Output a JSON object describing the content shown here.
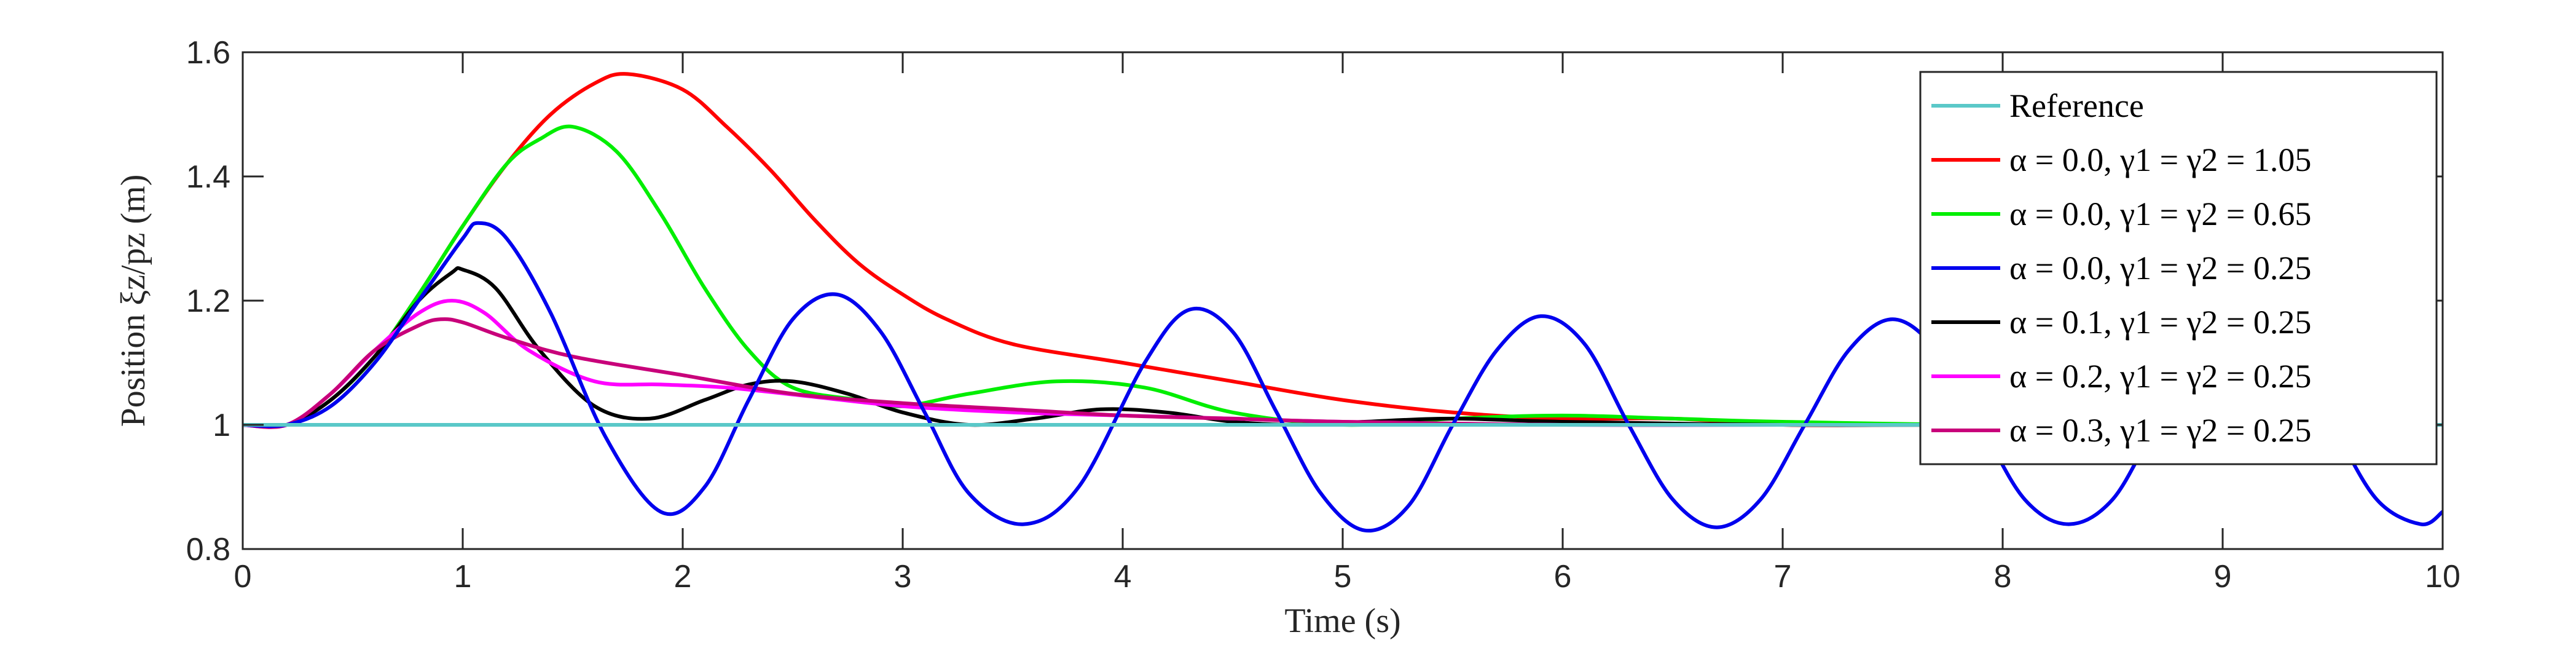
{
  "chart_data": {
    "type": "line",
    "xlabel": "Time (s)",
    "ylabel": "Position ξz/pz (m)",
    "xlim": [
      0,
      10
    ],
    "ylim": [
      0.8,
      1.6
    ],
    "xticks": [
      "0",
      "1",
      "2",
      "3",
      "4",
      "5",
      "6",
      "7",
      "8",
      "9",
      "10"
    ],
    "yticks": [
      "0.8",
      "1",
      "1.2",
      "1.4",
      "1.6"
    ],
    "grid": false,
    "legend_position": "top-right",
    "series": [
      {
        "name": "Reference",
        "color": "#5ac8c8",
        "x": [
          0,
          10
        ],
        "y": [
          1.0,
          1.0
        ]
      },
      {
        "name": "α = 0.0, γ1 = γ2 = 1.05",
        "color": "#ff0000",
        "x": [
          0,
          0.2,
          0.4,
          0.6,
          0.8,
          1.0,
          1.2,
          1.4,
          1.6,
          1.75,
          2.0,
          2.2,
          2.4,
          2.6,
          2.8,
          3.0,
          3.2,
          3.5,
          4.0,
          4.5,
          5.0,
          5.5,
          6.0,
          6.5,
          7.0,
          7.5,
          8.0,
          9.0,
          10.0
        ],
        "y": [
          1.0,
          1.0,
          1.04,
          1.11,
          1.21,
          1.32,
          1.42,
          1.5,
          1.55,
          1.565,
          1.54,
          1.48,
          1.41,
          1.33,
          1.26,
          1.21,
          1.17,
          1.13,
          1.1,
          1.07,
          1.04,
          1.02,
          1.01,
          1.01,
          1.0,
          1.0,
          1.0,
          1.0,
          1.0
        ]
      },
      {
        "name": "α = 0.0, γ1 = γ2 = 0.65",
        "color": "#00ee00",
        "x": [
          0,
          0.2,
          0.4,
          0.6,
          0.8,
          1.0,
          1.2,
          1.35,
          1.5,
          1.7,
          1.9,
          2.1,
          2.3,
          2.5,
          2.8,
          3.0,
          3.3,
          3.7,
          4.1,
          4.5,
          5.0,
          5.5,
          6.0,
          6.5,
          7.0,
          8.0,
          10.0
        ],
        "y": [
          1.0,
          1.0,
          1.04,
          1.11,
          1.21,
          1.32,
          1.42,
          1.46,
          1.48,
          1.44,
          1.34,
          1.22,
          1.12,
          1.06,
          1.04,
          1.03,
          1.05,
          1.07,
          1.06,
          1.02,
          1.0,
          1.01,
          1.015,
          1.01,
          1.005,
          1.0,
          1.0
        ]
      },
      {
        "name": "α = 0.0, γ1 = γ2 = 0.25",
        "color": "#0000ee",
        "x": [
          0,
          0.2,
          0.4,
          0.6,
          0.8,
          1.0,
          1.07,
          1.2,
          1.4,
          1.65,
          1.9,
          2.1,
          2.3,
          2.5,
          2.7,
          2.9,
          3.1,
          3.3,
          3.55,
          3.8,
          4.1,
          4.3,
          4.5,
          4.7,
          4.9,
          5.1,
          5.3,
          5.5,
          5.7,
          5.9,
          6.1,
          6.3,
          6.5,
          6.7,
          6.9,
          7.1,
          7.3,
          7.5,
          7.7,
          7.9,
          8.1,
          8.3,
          8.5,
          8.7,
          8.9,
          9.1,
          9.3,
          9.5,
          9.7,
          9.9,
          10.0
        ],
        "y": [
          1.0,
          1.0,
          1.03,
          1.1,
          1.2,
          1.3,
          1.325,
          1.3,
          1.18,
          0.98,
          0.86,
          0.9,
          1.04,
          1.17,
          1.21,
          1.15,
          1.02,
          0.89,
          0.84,
          0.9,
          1.1,
          1.185,
          1.15,
          1.02,
          0.89,
          0.83,
          0.87,
          1.0,
          1.12,
          1.175,
          1.13,
          1.0,
          0.88,
          0.835,
          0.88,
          1.0,
          1.12,
          1.17,
          1.12,
          1.0,
          0.88,
          0.84,
          0.88,
          1.0,
          1.1,
          1.17,
          1.13,
          1.0,
          0.88,
          0.84,
          0.86
        ]
      },
      {
        "name": "α = 0.1, γ1 = γ2 = 0.25",
        "color": "#000000",
        "x": [
          0,
          0.2,
          0.4,
          0.6,
          0.8,
          0.95,
          1.0,
          1.15,
          1.35,
          1.6,
          1.85,
          2.1,
          2.3,
          2.5,
          2.75,
          3.0,
          3.3,
          3.6,
          3.9,
          4.2,
          4.5,
          4.8,
          5.1,
          5.5,
          6.0,
          7.0,
          8.0,
          10.0
        ],
        "y": [
          1.0,
          1.0,
          1.04,
          1.11,
          1.2,
          1.245,
          1.25,
          1.22,
          1.12,
          1.03,
          1.01,
          1.04,
          1.065,
          1.07,
          1.05,
          1.02,
          1.0,
          1.01,
          1.025,
          1.02,
          1.005,
          1.0,
          1.005,
          1.01,
          1.005,
          1.0,
          1.0,
          1.0
        ]
      },
      {
        "name": "α = 0.2, γ1 = γ2 = 0.25",
        "color": "#ff00ff",
        "x": [
          0,
          0.2,
          0.4,
          0.6,
          0.8,
          0.95,
          1.1,
          1.3,
          1.6,
          1.9,
          2.2,
          2.6,
          3.0,
          3.5,
          4.0,
          4.5,
          5.0,
          6.0,
          7.0,
          8.0,
          10.0
        ],
        "y": [
          1.0,
          1.0,
          1.05,
          1.12,
          1.18,
          1.2,
          1.18,
          1.12,
          1.07,
          1.065,
          1.06,
          1.045,
          1.03,
          1.02,
          1.015,
          1.01,
          1.005,
          1.0,
          1.0,
          1.0,
          1.0
        ]
      },
      {
        "name": "α = 0.3, γ1 = γ2 = 0.25",
        "color": "#c8007a",
        "x": [
          0,
          0.2,
          0.4,
          0.6,
          0.8,
          0.9,
          1.0,
          1.2,
          1.5,
          2.0,
          2.5,
          3.0,
          3.5,
          4.0,
          4.5,
          5.0,
          6.0,
          7.0,
          8.0,
          10.0
        ],
        "y": [
          1.0,
          1.0,
          1.05,
          1.12,
          1.16,
          1.17,
          1.165,
          1.14,
          1.11,
          1.08,
          1.05,
          1.035,
          1.025,
          1.015,
          1.01,
          1.005,
          1.0,
          1.0,
          1.0,
          1.0
        ]
      }
    ]
  }
}
